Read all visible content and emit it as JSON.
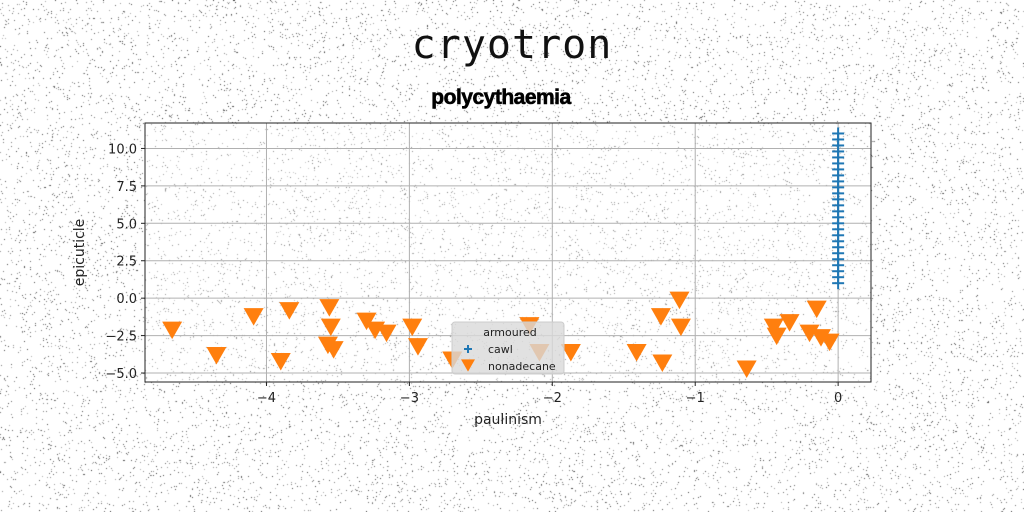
{
  "title": "cryotron",
  "subtitle": "polycythaemia",
  "colors": {
    "cawl": "#1f77b4",
    "nonadecane": "#ff7f0e",
    "grid": "#b0b0b0"
  },
  "chart_data": {
    "type": "scatter",
    "xlabel": "paulinism",
    "ylabel": "epicuticle",
    "xlim": [
      -4.85,
      0.23
    ],
    "ylim": [
      -5.6,
      11.7
    ],
    "xticks": [
      -4,
      -3,
      -2,
      -1,
      0
    ],
    "xtick_labels": [
      "−4",
      "−3",
      "−2",
      "−1",
      "0"
    ],
    "yticks": [
      -5.0,
      -2.5,
      0.0,
      2.5,
      5.0,
      7.5,
      10.0
    ],
    "ytick_labels": [
      "−5.0",
      "−2.5",
      "0.0",
      "2.5",
      "5.0",
      "7.5",
      "10.0"
    ],
    "grid": true,
    "legend": {
      "title": "armoured",
      "placement": "lower-center",
      "entries": [
        "cawl",
        "nonadecane"
      ]
    },
    "series": [
      {
        "name": "cawl",
        "marker": "plus",
        "points": [
          [
            0,
            1.0
          ],
          [
            0,
            1.4
          ],
          [
            0,
            1.8
          ],
          [
            0,
            2.2
          ],
          [
            0,
            2.6
          ],
          [
            0,
            3.0
          ],
          [
            0,
            3.4
          ],
          [
            0,
            3.8
          ],
          [
            0,
            4.2
          ],
          [
            0,
            4.6
          ],
          [
            0,
            5.0
          ],
          [
            0,
            5.4
          ],
          [
            0,
            5.8
          ],
          [
            0,
            6.2
          ],
          [
            0,
            6.6
          ],
          [
            0,
            7.0
          ],
          [
            0,
            7.4
          ],
          [
            0,
            7.8
          ],
          [
            0,
            8.2
          ],
          [
            0,
            8.6
          ],
          [
            0,
            9.0
          ],
          [
            0,
            9.4
          ],
          [
            0,
            9.8
          ],
          [
            0,
            10.2
          ],
          [
            0,
            10.6
          ],
          [
            0,
            11.0
          ]
        ]
      },
      {
        "name": "nonadecane",
        "marker": "triangle-down",
        "points": [
          [
            -4.66,
            -2.1
          ],
          [
            -4.35,
            -3.8
          ],
          [
            -4.09,
            -1.2
          ],
          [
            -3.9,
            -4.2
          ],
          [
            -3.84,
            -0.8
          ],
          [
            -3.56,
            -0.6
          ],
          [
            -3.55,
            -1.9
          ],
          [
            -3.57,
            -3.1
          ],
          [
            -3.53,
            -3.4
          ],
          [
            -3.3,
            -1.5
          ],
          [
            -3.24,
            -2.1
          ],
          [
            -3.16,
            -2.3
          ],
          [
            -2.98,
            -1.9
          ],
          [
            -2.94,
            -3.2
          ],
          [
            -2.7,
            -4.1
          ],
          [
            -2.16,
            -1.8
          ],
          [
            -2.09,
            -3.6
          ],
          [
            -1.87,
            -3.6
          ],
          [
            -1.41,
            -3.6
          ],
          [
            -1.24,
            -1.2
          ],
          [
            -1.23,
            -4.3
          ],
          [
            -1.11,
            -0.1
          ],
          [
            -1.1,
            -1.9
          ],
          [
            -0.64,
            -4.7
          ],
          [
            -0.45,
            -1.9
          ],
          [
            -0.43,
            -2.5
          ],
          [
            -0.34,
            -1.6
          ],
          [
            -0.2,
            -2.3
          ],
          [
            -0.15,
            -0.7
          ],
          [
            -0.12,
            -2.6
          ],
          [
            -0.06,
            -2.9
          ]
        ]
      }
    ]
  }
}
